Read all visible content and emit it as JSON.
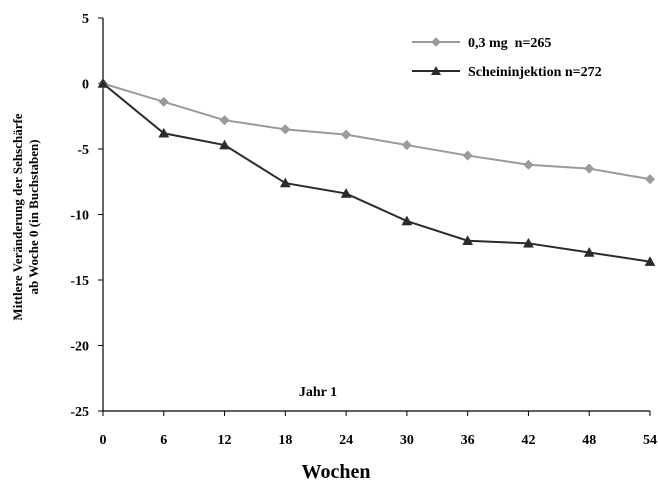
{
  "chart_data": {
    "type": "line",
    "xlabel": "Wochen",
    "ylabel_lines": [
      "Mittlere Veränderung der Sehschärfe",
      "ab Woche 0 (in Buchstaben)"
    ],
    "annotation": "Jahr 1",
    "x": [
      0,
      6,
      12,
      18,
      24,
      30,
      36,
      42,
      48,
      54
    ],
    "xticks": [
      "0",
      "6",
      "12",
      "18",
      "24",
      "30",
      "36",
      "42",
      "48",
      "54"
    ],
    "yticks": [
      "5",
      "0",
      "-5",
      "-10",
      "-15",
      "-20",
      "-25"
    ],
    "ylim": [
      -25,
      5
    ],
    "xlim": [
      0,
      54
    ],
    "grid": false,
    "legend_position": "top-right",
    "series": [
      {
        "name": "0,3 mg  n=265",
        "color": "#9a9a9a",
        "marker": "diamond",
        "values": [
          0,
          -1.4,
          -2.8,
          -3.5,
          -3.9,
          -4.7,
          -5.5,
          -6.2,
          -6.5,
          -7.3
        ]
      },
      {
        "name": "Scheininjektion n=272",
        "color": "#2b2b2b",
        "marker": "triangle",
        "values": [
          0,
          -3.8,
          -4.7,
          -7.6,
          -8.4,
          -10.5,
          -12.0,
          -12.2,
          -12.9,
          -13.6
        ]
      }
    ]
  }
}
